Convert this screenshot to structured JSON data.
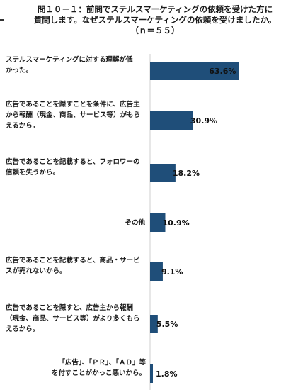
{
  "title": {
    "line1_prefix": "問１０－１：",
    "line1_underlined": "前問でステルスマーケティングの依頼を受けた方",
    "line1_suffix": "に",
    "line2": "質問します。なぜステルスマーケティングの依頼を受けましたか。",
    "n": "（ｎ＝５５）"
  },
  "colors": {
    "bar": "#1f4e79",
    "axis": "#cfcfcf"
  },
  "chart_data": {
    "type": "bar",
    "orientation": "horizontal",
    "categories": [
      "ステルスマーケティングに対する理解が低かった。",
      "広告であることを隠すことを条件に、広告主から報酬（現金、商品、サービス等）がもらえるから。",
      "広告であることを記載すると、フォロワーの信頼を失うから。",
      "その他",
      "広告であることを記載すると、商品・サービスが売れないから。",
      "広告であることを隠すと、広告主から報酬（現金、商品、サービス等）がより多くもらえるから。",
      "「広告」、「ＰＲ」、「ＡＤ」等を付すことがかっこ悪いから。"
    ],
    "values": [
      63.6,
      30.9,
      18.2,
      10.9,
      9.1,
      5.5,
      1.8
    ],
    "value_labels": [
      "63.6%",
      "30.9%",
      "18.2%",
      "10.9%",
      "9.1%",
      "5.5%",
      "1.8%"
    ],
    "unit": "%",
    "xlim": [
      0,
      70
    ],
    "grid": false,
    "legend": "none"
  }
}
